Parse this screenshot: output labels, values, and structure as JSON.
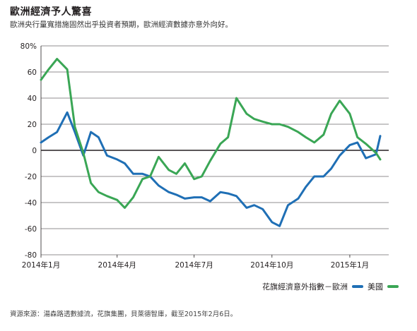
{
  "title": "歐洲經濟予人驚喜",
  "subtitle": "歐洲央行量寬措施固然出乎投資者預期，歐洲經濟數據亦意外向好。",
  "source": "資源來源：湯森路透數據流，花旗集團，貝萊德智庫，截至2015年2月6日。",
  "colors": {
    "europe": "#1f6fb5",
    "us": "#3aa655",
    "axis": "#231f20",
    "grid": "#231f20"
  },
  "chart_data": {
    "type": "line",
    "ylim": [
      -80,
      80
    ],
    "yticks": [
      80,
      60,
      40,
      20,
      0,
      -20,
      -40,
      -60,
      -80
    ],
    "ytick_labels": [
      "80%",
      "60",
      "40",
      "20",
      "0",
      "-20",
      "-40",
      "-60",
      "-80"
    ],
    "xlim": [
      "2014-01-01",
      "2015-02-16"
    ],
    "xticks": [
      "2014-01-01",
      "2014-04-01",
      "2014-07-01",
      "2014-10-01",
      "2015-01-01"
    ],
    "xtick_labels": [
      "2014年1月",
      "2014年4月",
      "2014年7月",
      "2014年10月",
      "2015年1月"
    ],
    "grid": "horizontal",
    "legend_position": "bottom-right",
    "series": [
      {
        "name": "花旗經濟意外指數－歐洲",
        "key": "europe",
        "x": [
          "2014-01-01",
          "2014-01-10",
          "2014-01-20",
          "2014-02-01",
          "2014-02-10",
          "2014-02-20",
          "2014-03-01",
          "2014-03-10",
          "2014-03-20",
          "2014-04-01",
          "2014-04-10",
          "2014-04-20",
          "2014-05-01",
          "2014-05-10",
          "2014-05-20",
          "2014-06-01",
          "2014-06-10",
          "2014-06-20",
          "2014-07-01",
          "2014-07-10",
          "2014-07-20",
          "2014-08-01",
          "2014-08-10",
          "2014-08-20",
          "2014-09-01",
          "2014-09-10",
          "2014-09-20",
          "2014-10-01",
          "2014-10-10",
          "2014-10-20",
          "2014-11-01",
          "2014-11-10",
          "2014-11-20",
          "2014-12-01",
          "2014-12-10",
          "2014-12-20",
          "2015-01-01",
          "2015-01-10",
          "2015-01-20",
          "2015-02-01",
          "2015-02-06"
        ],
        "values": [
          6,
          10,
          14,
          29,
          14,
          -4,
          14,
          10,
          -4,
          -7,
          -10,
          -18,
          -18,
          -20,
          -27,
          -32,
          -34,
          -37,
          -36,
          -36,
          -39,
          -32,
          -33,
          -35,
          -44,
          -42,
          -45,
          -55,
          -58,
          -42,
          -37,
          -28,
          -20,
          -20,
          -14,
          -4,
          4,
          6,
          -6,
          -3,
          11
        ]
      },
      {
        "name": "美國",
        "key": "us",
        "x": [
          "2014-01-01",
          "2014-01-10",
          "2014-01-20",
          "2014-02-01",
          "2014-02-10",
          "2014-02-20",
          "2014-03-01",
          "2014-03-10",
          "2014-03-20",
          "2014-04-01",
          "2014-04-10",
          "2014-04-20",
          "2014-05-01",
          "2014-05-10",
          "2014-05-20",
          "2014-06-01",
          "2014-06-10",
          "2014-06-20",
          "2014-07-01",
          "2014-07-10",
          "2014-07-20",
          "2014-08-01",
          "2014-08-10",
          "2014-08-20",
          "2014-09-01",
          "2014-09-10",
          "2014-09-20",
          "2014-10-01",
          "2014-10-10",
          "2014-10-20",
          "2014-11-01",
          "2014-11-10",
          "2014-11-20",
          "2014-12-01",
          "2014-12-10",
          "2014-12-20",
          "2015-01-01",
          "2015-01-10",
          "2015-01-20",
          "2015-02-01",
          "2015-02-06"
        ],
        "values": [
          54,
          62,
          70,
          62,
          18,
          -2,
          -25,
          -32,
          -35,
          -38,
          -44,
          -36,
          -22,
          -20,
          -5,
          -15,
          -18,
          -10,
          -22,
          -20,
          -8,
          5,
          10,
          40,
          28,
          24,
          22,
          20,
          20,
          18,
          14,
          10,
          6,
          12,
          28,
          38,
          28,
          10,
          5,
          -2,
          -7
        ]
      }
    ]
  }
}
